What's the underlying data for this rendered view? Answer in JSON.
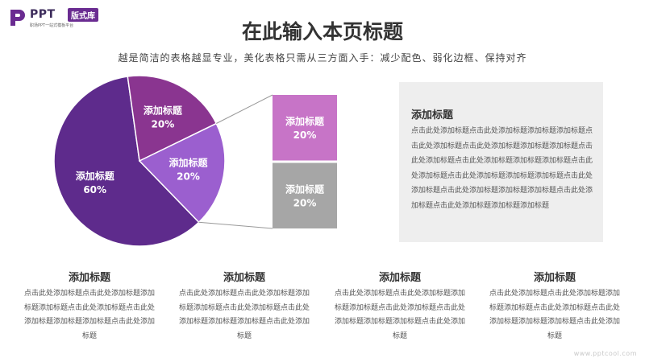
{
  "logo": {
    "brand": "PPT",
    "badge": "版式库",
    "tagline": "职场PPT一站式模板平台"
  },
  "header": {
    "title": "在此输入本页标题",
    "subtitle": "越是简洁的表格越显专业，美化表格只需从三方面入手：减少配色、弱化边框、保持对齐"
  },
  "chart_data": {
    "type": "pie",
    "slices": [
      {
        "label": "添加标题",
        "value": 60,
        "value_text": "60%",
        "color": "#5e2b8c"
      },
      {
        "label": "添加标题",
        "value": 20,
        "value_text": "20%",
        "color": "#8a3590"
      },
      {
        "label": "添加标题",
        "value": 20,
        "value_text": "20%",
        "color": "#9b5fcf"
      }
    ],
    "breakdown": [
      {
        "label": "添加标题",
        "value": 20,
        "value_text": "20%",
        "color": "#c774c7"
      },
      {
        "label": "添加标题",
        "value": 20,
        "value_text": "20%",
        "color": "#a6a6a6"
      }
    ]
  },
  "panel": {
    "title": "添加标题",
    "text": "点击此处添加标题点击此处添加标题添加标题添加标题点击此处添加标题点击此处添加标题添加标题添加标题点击此处添加标题点击此处添加标题添加标题添加标题点击此处添加标题点击此处添加标题添加标题添加标题点击此处添加标题点击此处添加标题添加标题添加标题点击此处添加标题点击此处添加标题添加标题添加标题"
  },
  "columns": [
    {
      "title": "添加标题",
      "text": "点击此处添加标题点击此处添加标题添加标题添加标题点击此处添加标题点击此处添加标题添加标题添加标题点击此处添加标题"
    },
    {
      "title": "添加标题",
      "text": "点击此处添加标题点击此处添加标题添加标题添加标题点击此处添加标题点击此处添加标题添加标题添加标题点击此处添加标题"
    },
    {
      "title": "添加标题",
      "text": "点击此处添加标题点击此处添加标题添加标题添加标题点击此处添加标题点击此处添加标题添加标题添加标题点击此处添加标题"
    },
    {
      "title": "添加标题",
      "text": "点击此处添加标题点击此处添加标题添加标题添加标题点击此处添加标题点击此处添加标题添加标题添加标题点击此处添加标题"
    }
  ],
  "watermark": "www.pptcool.com"
}
